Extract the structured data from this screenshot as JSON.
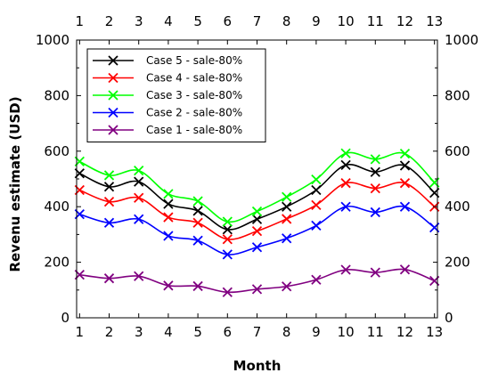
{
  "chart_data": {
    "type": "line",
    "xlabel": "Month",
    "ylabel": "Revenu estimate (USD)",
    "x": [
      1,
      2,
      3,
      4,
      5,
      6,
      7,
      8,
      9,
      10,
      11,
      12,
      13
    ],
    "xlim": [
      0.9,
      13.1
    ],
    "ylim": [
      0,
      1000
    ],
    "y_ticks": [
      0,
      200,
      400,
      600,
      800,
      1000
    ],
    "x_ticks": [
      1,
      2,
      3,
      4,
      5,
      6,
      7,
      8,
      9,
      10,
      11,
      12,
      13
    ],
    "grid": false,
    "legend_position": "top-left",
    "marker": "x",
    "series": [
      {
        "name": "Case 5 - sale-80%",
        "color": "#000000",
        "values": [
          520,
          472,
          490,
          410,
          385,
          318,
          355,
          400,
          460,
          550,
          525,
          548,
          450
        ]
      },
      {
        "name": "Case 4 - sale-80%",
        "color": "#ff0000",
        "values": [
          460,
          418,
          432,
          362,
          342,
          283,
          312,
          356,
          406,
          485,
          466,
          485,
          400
        ]
      },
      {
        "name": "Case 3 - sale-80%",
        "color": "#00ff00",
        "values": [
          563,
          513,
          530,
          446,
          420,
          346,
          383,
          435,
          498,
          592,
          571,
          591,
          487
        ]
      },
      {
        "name": "Case 2 - sale-80%",
        "color": "#0000ff",
        "values": [
          373,
          342,
          355,
          295,
          278,
          228,
          254,
          286,
          332,
          400,
          380,
          400,
          325
        ]
      },
      {
        "name": "Case 1 - sale-80%",
        "color": "#800080",
        "values": [
          155,
          142,
          150,
          116,
          114,
          92,
          103,
          113,
          137,
          173,
          163,
          174,
          133
        ]
      }
    ]
  }
}
